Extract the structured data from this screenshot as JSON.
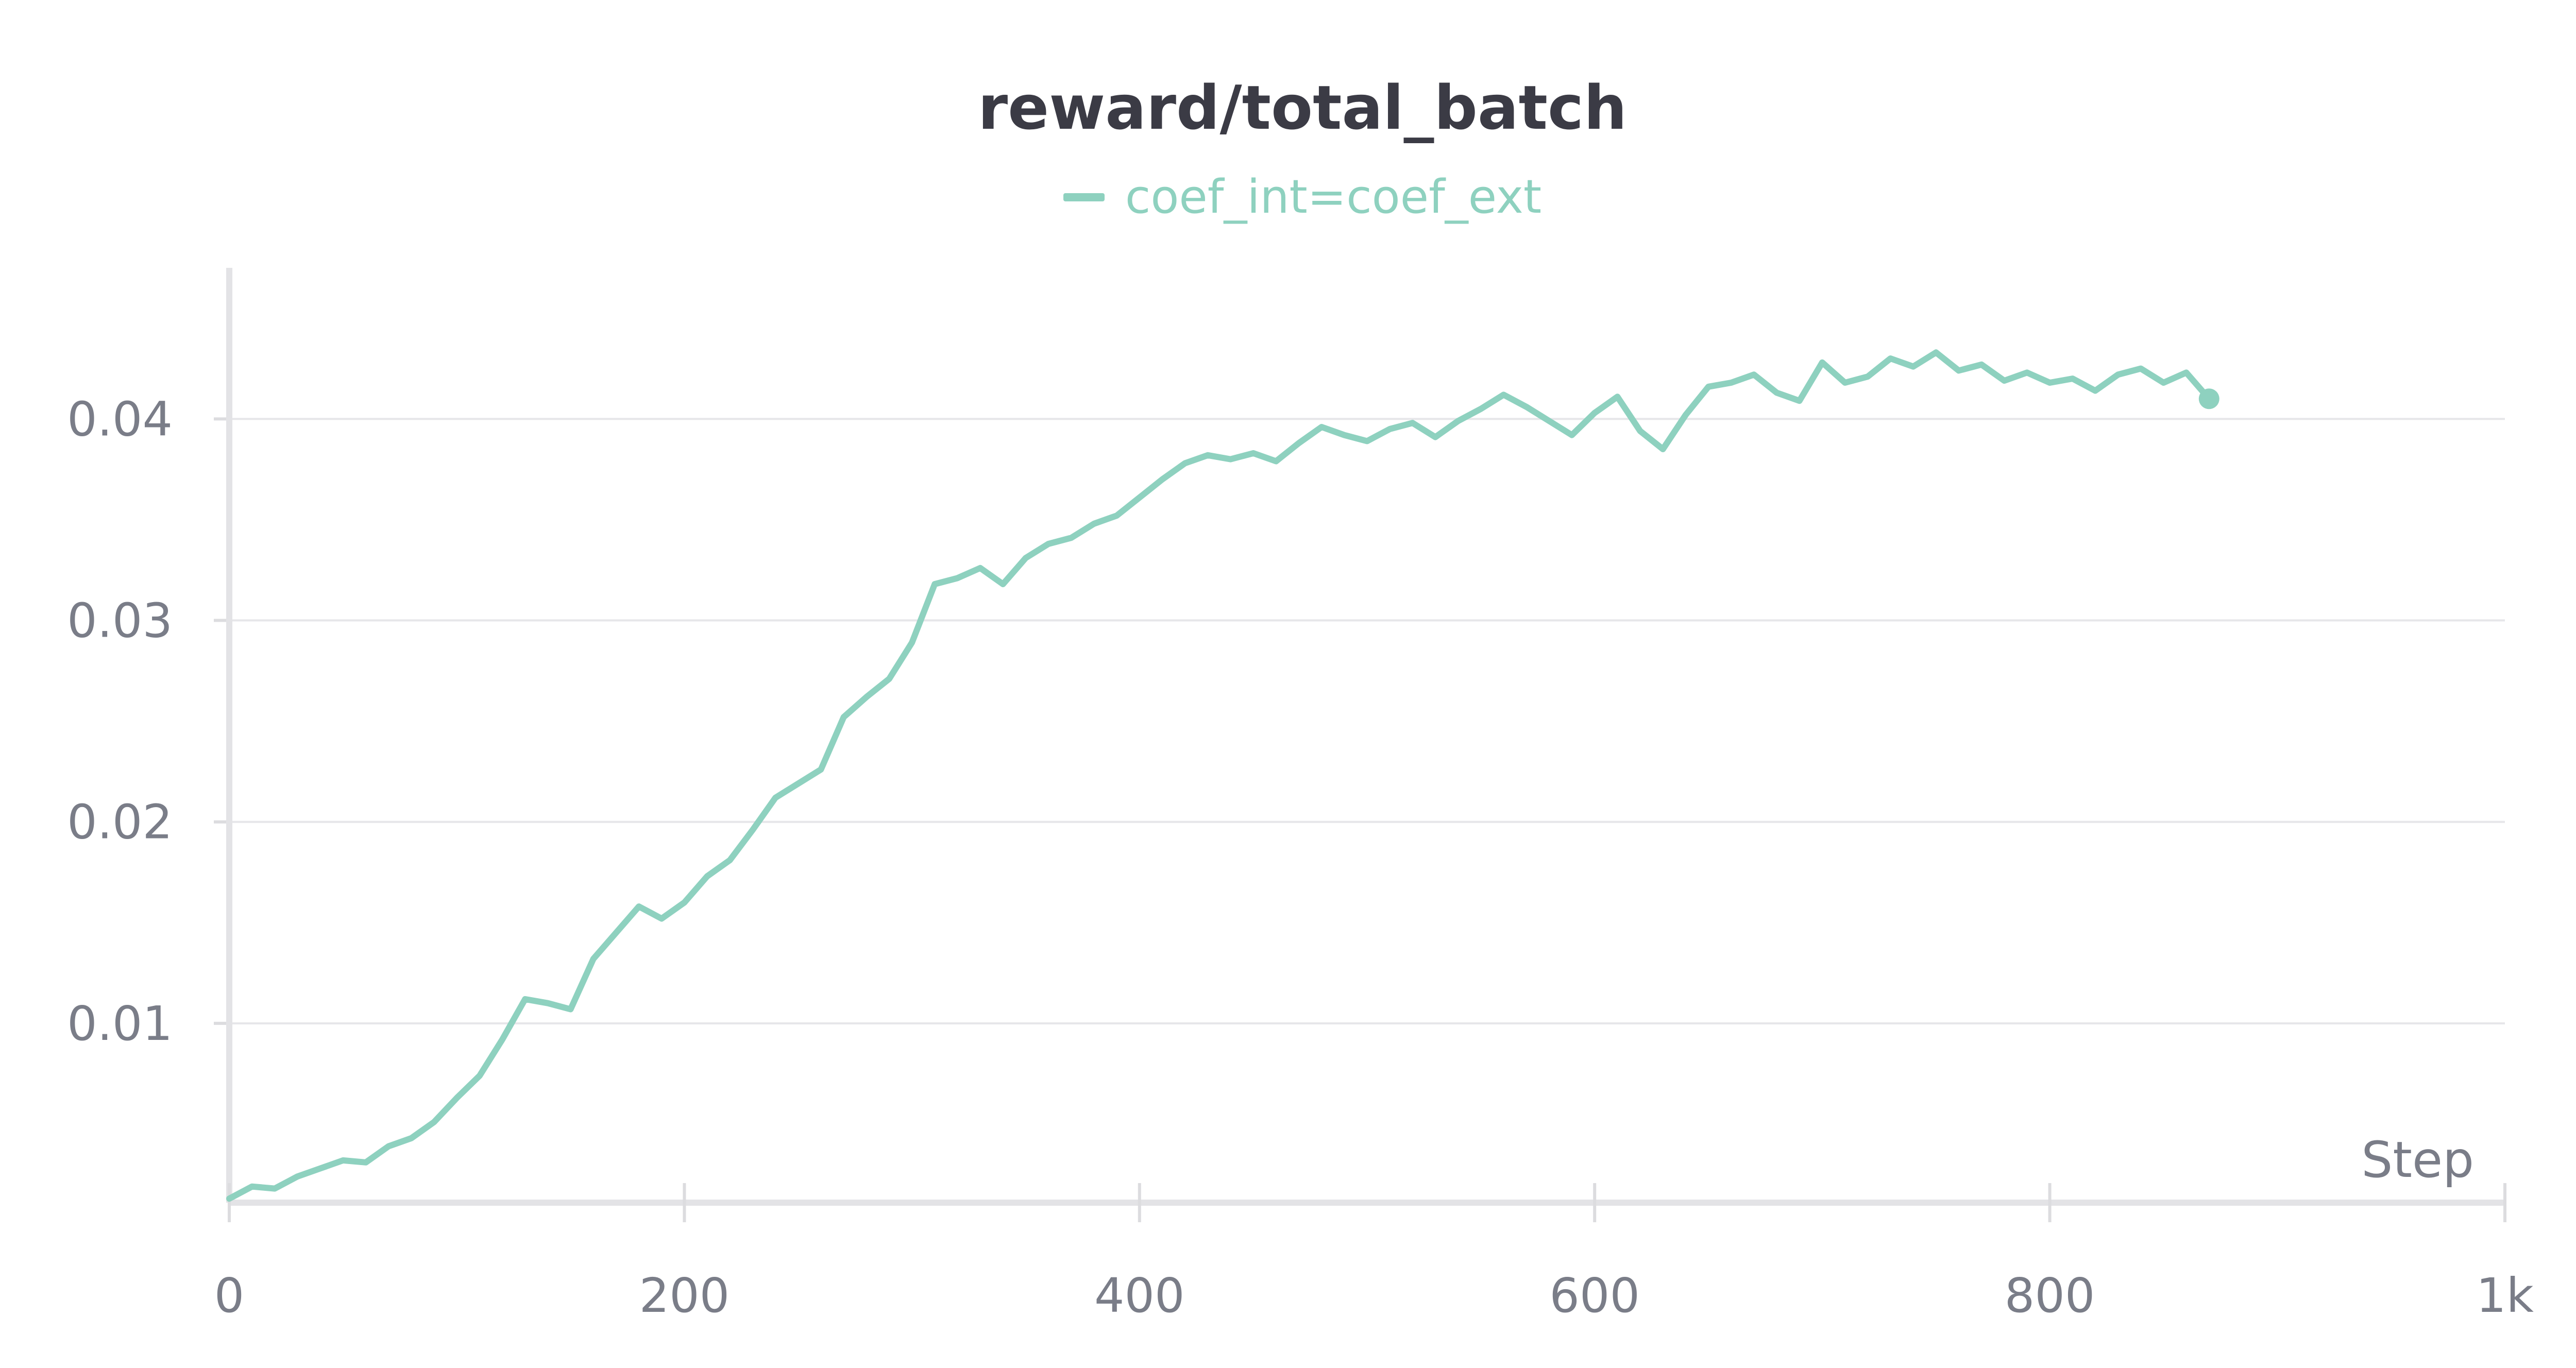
{
  "chart_data": {
    "type": "line",
    "title": "reward/total_batch",
    "xlabel": "Step",
    "ylabel": "",
    "xlim": [
      0,
      1000
    ],
    "ylim": [
      0.0011,
      0.0475
    ],
    "x_ticks": [
      0,
      200,
      400,
      600,
      800,
      1000
    ],
    "x_tick_labels": [
      "0",
      "200",
      "400",
      "600",
      "800",
      "1k"
    ],
    "y_ticks": [
      0.01,
      0.02,
      0.03,
      0.04
    ],
    "y_tick_labels": [
      "0.01",
      "0.02",
      "0.03",
      "0.04"
    ],
    "grid": true,
    "legend": "top-center",
    "series": [
      {
        "name": "coef_int=coef_ext",
        "color": "#8ed1bf",
        "x": [
          0,
          10,
          20,
          30,
          40,
          50,
          60,
          70,
          80,
          90,
          100,
          110,
          120,
          130,
          140,
          150,
          160,
          170,
          180,
          190,
          200,
          210,
          220,
          230,
          240,
          250,
          260,
          270,
          280,
          290,
          300,
          310,
          320,
          330,
          340,
          350,
          360,
          370,
          380,
          390,
          400,
          410,
          420,
          430,
          440,
          450,
          460,
          470,
          480,
          490,
          500,
          510,
          520,
          530,
          540,
          550,
          560,
          570,
          580,
          590,
          600,
          610,
          620,
          630,
          640,
          650,
          660,
          670,
          680,
          690,
          700,
          710,
          720,
          730,
          740,
          750,
          760,
          770,
          780,
          790,
          800,
          810,
          820,
          830,
          840,
          850,
          860,
          870
        ],
        "values": [
          0.0013,
          0.0019,
          0.0018,
          0.0024,
          0.0028,
          0.0032,
          0.0031,
          0.0039,
          0.0043,
          0.0051,
          0.0063,
          0.0074,
          0.0092,
          0.0112,
          0.011,
          0.0107,
          0.0132,
          0.0145,
          0.0158,
          0.0152,
          0.016,
          0.0173,
          0.0181,
          0.0196,
          0.0212,
          0.0219,
          0.0226,
          0.0252,
          0.0262,
          0.0271,
          0.0289,
          0.0318,
          0.0321,
          0.0326,
          0.0318,
          0.0331,
          0.0338,
          0.0341,
          0.0348,
          0.0352,
          0.0361,
          0.037,
          0.0378,
          0.0382,
          0.038,
          0.0383,
          0.0379,
          0.0388,
          0.0396,
          0.0392,
          0.0389,
          0.0395,
          0.0398,
          0.0391,
          0.0399,
          0.0405,
          0.0412,
          0.0406,
          0.0399,
          0.0392,
          0.0403,
          0.0411,
          0.0394,
          0.0385,
          0.0402,
          0.0416,
          0.0418,
          0.0422,
          0.0413,
          0.0409,
          0.0428,
          0.0418,
          0.0421,
          0.043,
          0.0426,
          0.0433,
          0.0424,
          0.0427,
          0.0419,
          0.0423,
          0.0418,
          0.042,
          0.0414,
          0.0422,
          0.0425,
          0.0418,
          0.0423,
          0.041
        ]
      }
    ]
  }
}
